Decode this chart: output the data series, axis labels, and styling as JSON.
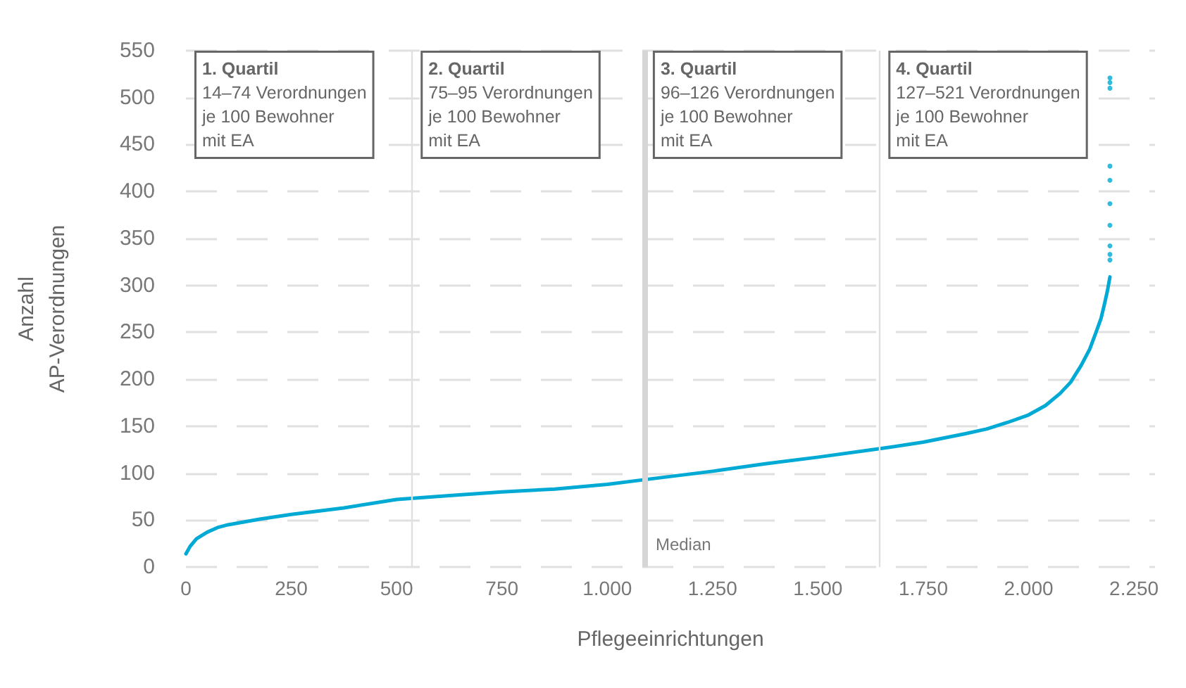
{
  "chart_data": {
    "type": "line",
    "xlabel": "Pflegeeinrichtungen",
    "ylabel": "Anzahl\nAP-Verordnungen",
    "series": [
      {
        "color": "#00aad4",
        "x": [
          0,
          10,
          25,
          50,
          75,
          100,
          175,
          250,
          375,
          500,
          625,
          750,
          875,
          1000,
          1088,
          1250,
          1375,
          1500,
          1647,
          1750,
          1850,
          1900,
          1950,
          2000,
          2040,
          2075,
          2100,
          2125,
          2145,
          2160,
          2172,
          2180,
          2187,
          2193
        ],
        "values": [
          14,
          22,
          30,
          37,
          42,
          45,
          51,
          56,
          63,
          72,
          76,
          80,
          83,
          88,
          93,
          102,
          110,
          117,
          126,
          133,
          142,
          147,
          154,
          162,
          172,
          185,
          197,
          215,
          232,
          250,
          265,
          280,
          294,
          309
        ]
      },
      {
        "type": "scatter",
        "color": "#00aad4",
        "x": [
          2193,
          2193,
          2193,
          2193,
          2193,
          2193,
          2193,
          2193,
          2193,
          2193
        ],
        "values": [
          327,
          333,
          342,
          364,
          387,
          412,
          427,
          510,
          516,
          521
        ]
      }
    ],
    "xlim": [
      0,
      2300
    ],
    "xticks": [
      0,
      250,
      500,
      750,
      {
        "value": 1000,
        "label": "1.000"
      },
      {
        "value": 1250,
        "label": "1.250"
      },
      {
        "value": 1500,
        "label": "1.500"
      },
      {
        "value": 1750,
        "label": "1.750"
      },
      {
        "value": 2000,
        "label": "2.000"
      },
      {
        "value": 2250,
        "label": "2.250"
      }
    ],
    "ylim": [
      0,
      550
    ],
    "yticks": [
      0,
      50,
      100,
      150,
      200,
      250,
      300,
      350,
      400,
      450,
      500,
      550
    ],
    "grid": "y",
    "marker": "none",
    "ref_lines": [
      {
        "axis": "x",
        "value": 537,
        "color": "#e0e0e0"
      },
      {
        "axis": "x",
        "value": 1088,
        "label": "Median",
        "color": "#d6d6d6"
      },
      {
        "axis": "x",
        "value": 1647,
        "color": "#e0e0e0"
      }
    ],
    "annotations": [
      "1. Quartil\n14–74 Verordnungen\nje 100 Bewohner\nmit EA",
      "2. Quartil\n75–95 Verordnungen\nje 100 Bewohner\nmit EA",
      "3. Quartil\n96–126 Verordnungen\nje 100 Bewohner\nmit EA",
      "4. Quartil\n127–521 Verordnungen\nje 100 Bewohner\nmit EA"
    ]
  }
}
